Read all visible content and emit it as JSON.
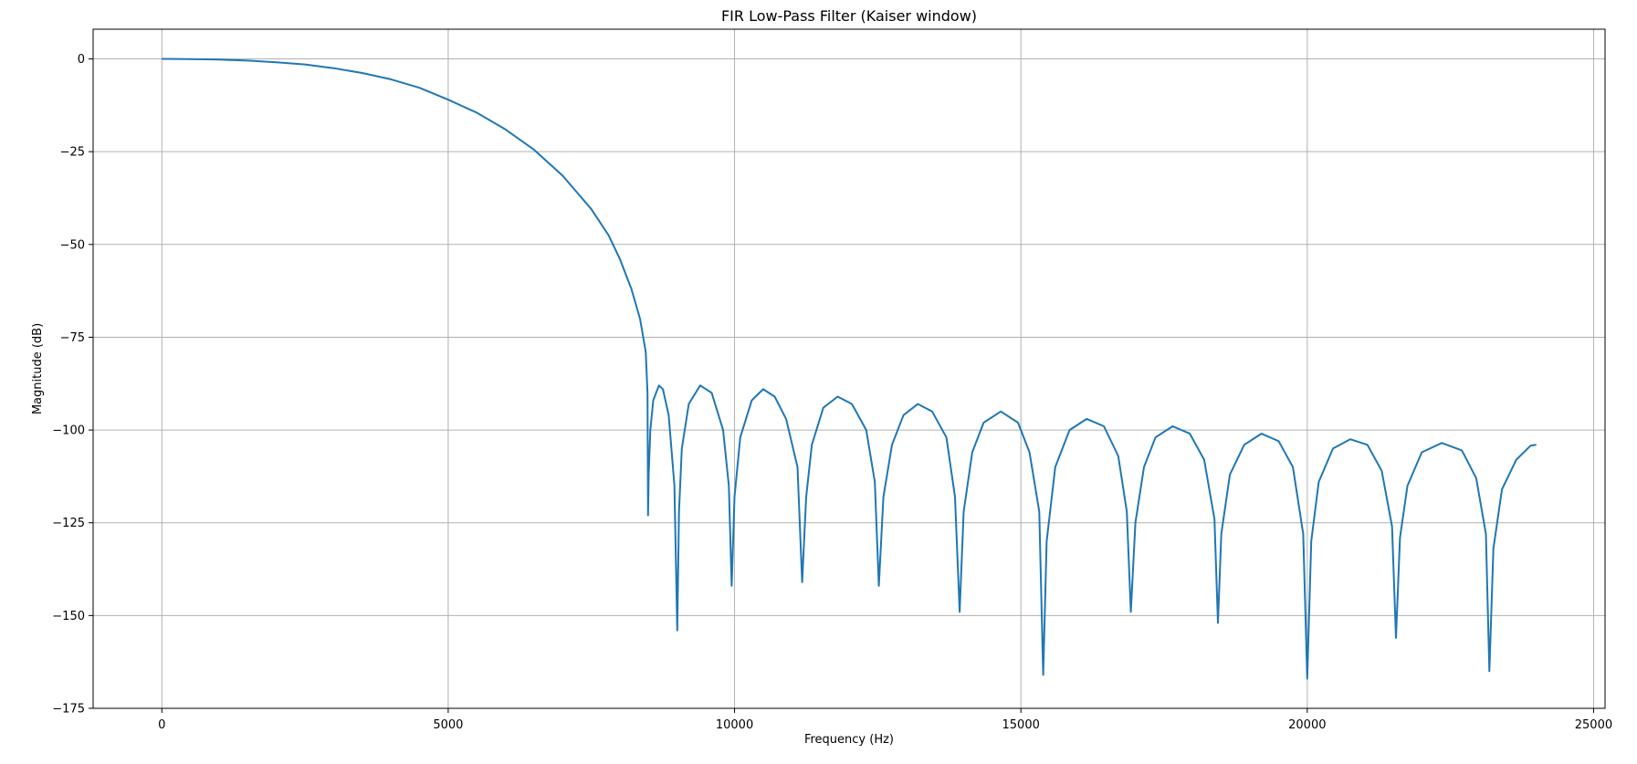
{
  "chart_data": {
    "type": "line",
    "title": "FIR Low-Pass Filter (Kaiser window)",
    "xlabel": "Frequency (Hz)",
    "ylabel": "Magnitude (dB)",
    "xlim": [
      -1200,
      25200
    ],
    "ylim": [
      -175,
      8
    ],
    "grid": true,
    "xticks": [
      0,
      5000,
      10000,
      15000,
      20000,
      25000
    ],
    "xtick_labels": [
      "0",
      "5000",
      "10000",
      "15000",
      "20000",
      "25000"
    ],
    "yticks": [
      0,
      -25,
      -50,
      -75,
      -100,
      -125,
      -150,
      -175
    ],
    "ytick_labels": [
      "0",
      "−25",
      "−50",
      "−75",
      "−100",
      "−125",
      "−150",
      "−175"
    ],
    "series": [
      {
        "color": "#1f77b4",
        "points": [
          [
            0,
            0
          ],
          [
            500,
            -0.05
          ],
          [
            1000,
            -0.2
          ],
          [
            1500,
            -0.45
          ],
          [
            2000,
            -0.9
          ],
          [
            2500,
            -1.5
          ],
          [
            3000,
            -2.5
          ],
          [
            3500,
            -3.8
          ],
          [
            4000,
            -5.5
          ],
          [
            4500,
            -7.8
          ],
          [
            5000,
            -11
          ],
          [
            5500,
            -14.5
          ],
          [
            6000,
            -19
          ],
          [
            6500,
            -24.5
          ],
          [
            7000,
            -31.5
          ],
          [
            7500,
            -40.5
          ],
          [
            7800,
            -47.5
          ],
          [
            8000,
            -54
          ],
          [
            8200,
            -62
          ],
          [
            8350,
            -70
          ],
          [
            8450,
            -79
          ],
          [
            8480,
            -90
          ],
          [
            8490,
            -123
          ],
          [
            8500,
            -112
          ],
          [
            8530,
            -100
          ],
          [
            8580,
            -92
          ],
          [
            8680,
            -88
          ],
          [
            8750,
            -89
          ],
          [
            8850,
            -96
          ],
          [
            8950,
            -115
          ],
          [
            9000,
            -154
          ],
          [
            9030,
            -122
          ],
          [
            9080,
            -105
          ],
          [
            9200,
            -93
          ],
          [
            9400,
            -88
          ],
          [
            9600,
            -90
          ],
          [
            9800,
            -100
          ],
          [
            9900,
            -115
          ],
          [
            9950,
            -142
          ],
          [
            10000,
            -118
          ],
          [
            10100,
            -102
          ],
          [
            10300,
            -92
          ],
          [
            10500,
            -89
          ],
          [
            10700,
            -91
          ],
          [
            10900,
            -97
          ],
          [
            11100,
            -110
          ],
          [
            11180,
            -141
          ],
          [
            11250,
            -118
          ],
          [
            11350,
            -104
          ],
          [
            11550,
            -94
          ],
          [
            11800,
            -91
          ],
          [
            12050,
            -93
          ],
          [
            12300,
            -100
          ],
          [
            12450,
            -114
          ],
          [
            12520,
            -142
          ],
          [
            12600,
            -118
          ],
          [
            12750,
            -104
          ],
          [
            12950,
            -96
          ],
          [
            13200,
            -93
          ],
          [
            13450,
            -95
          ],
          [
            13700,
            -102
          ],
          [
            13850,
            -118
          ],
          [
            13930,
            -149
          ],
          [
            14000,
            -122
          ],
          [
            14150,
            -106
          ],
          [
            14350,
            -98
          ],
          [
            14650,
            -95
          ],
          [
            14950,
            -98
          ],
          [
            15150,
            -106
          ],
          [
            15320,
            -122
          ],
          [
            15390,
            -166
          ],
          [
            15450,
            -130
          ],
          [
            15600,
            -110
          ],
          [
            15850,
            -100
          ],
          [
            16150,
            -97
          ],
          [
            16450,
            -99
          ],
          [
            16700,
            -107
          ],
          [
            16850,
            -122
          ],
          [
            16920,
            -149
          ],
          [
            17000,
            -125
          ],
          [
            17150,
            -110
          ],
          [
            17350,
            -102
          ],
          [
            17650,
            -99
          ],
          [
            17950,
            -101
          ],
          [
            18200,
            -108
          ],
          [
            18380,
            -124
          ],
          [
            18440,
            -152
          ],
          [
            18500,
            -128
          ],
          [
            18650,
            -112
          ],
          [
            18900,
            -104
          ],
          [
            19200,
            -101
          ],
          [
            19500,
            -103
          ],
          [
            19750,
            -110
          ],
          [
            19930,
            -128
          ],
          [
            20000,
            -167
          ],
          [
            20070,
            -130
          ],
          [
            20200,
            -114
          ],
          [
            20450,
            -105
          ],
          [
            20750,
            -102.5
          ],
          [
            21050,
            -104
          ],
          [
            21300,
            -111
          ],
          [
            21480,
            -126
          ],
          [
            21550,
            -156
          ],
          [
            21620,
            -129
          ],
          [
            21750,
            -115
          ],
          [
            22000,
            -106
          ],
          [
            22350,
            -103.5
          ],
          [
            22700,
            -105.5
          ],
          [
            22950,
            -113
          ],
          [
            23120,
            -128
          ],
          [
            23180,
            -165
          ],
          [
            23250,
            -132
          ],
          [
            23400,
            -116
          ],
          [
            23650,
            -108
          ],
          [
            23900,
            -104.2
          ],
          [
            24000,
            -104
          ]
        ]
      }
    ]
  }
}
